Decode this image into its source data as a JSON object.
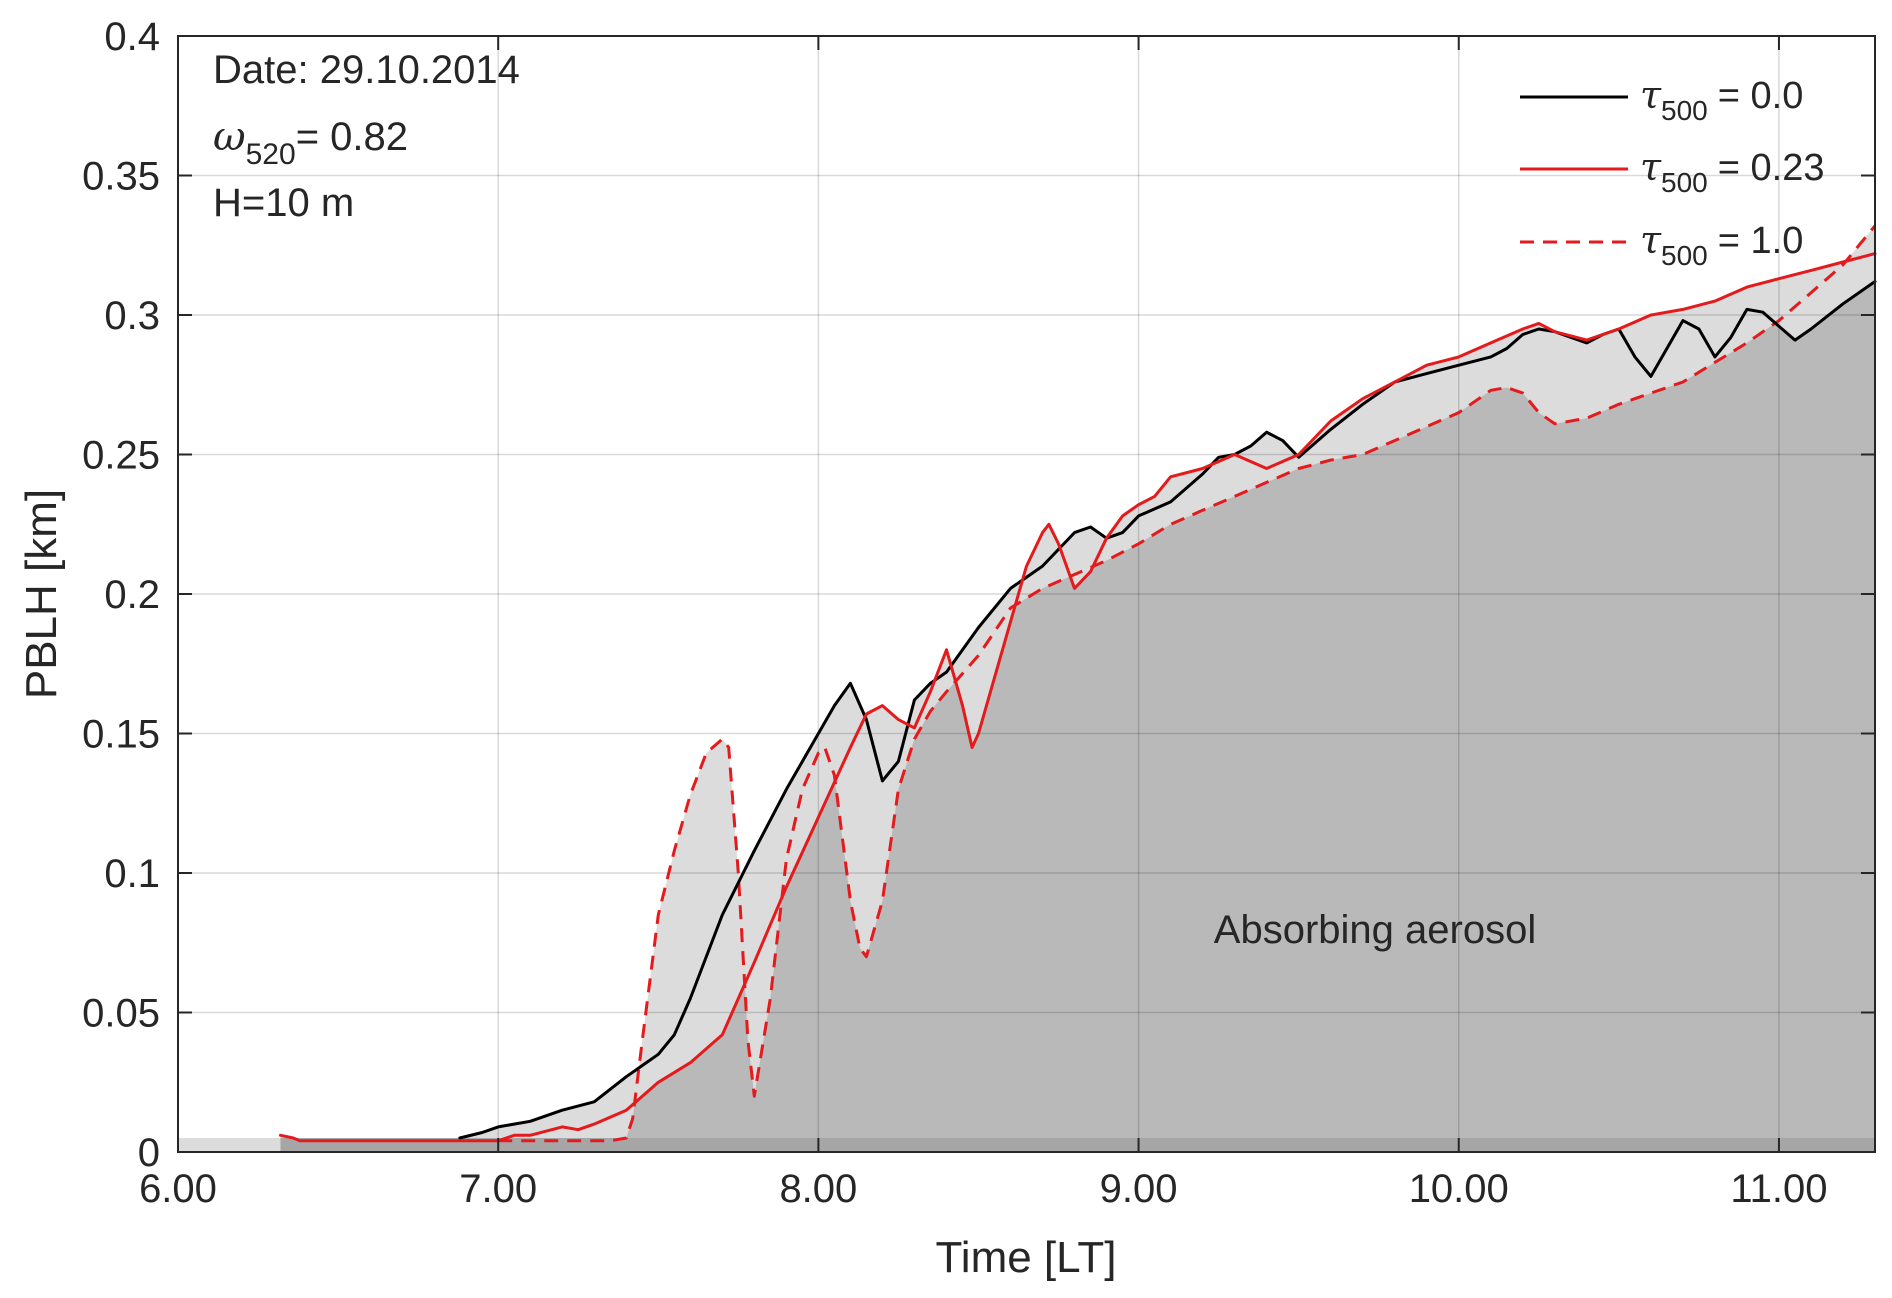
{
  "chart_data": {
    "type": "line",
    "title": "",
    "xlabel": "Time [LT]",
    "ylabel": "PBLH [km]",
    "xlim": [
      6.0,
      11.3
    ],
    "ylim": [
      0,
      0.4
    ],
    "xticks": [
      6.0,
      7.0,
      8.0,
      9.0,
      10.0,
      11.0
    ],
    "xtick_labels": [
      "6.00",
      "7.00",
      "8.00",
      "9.00",
      "10.00",
      "11.00"
    ],
    "yticks": [
      0,
      0.05,
      0.1,
      0.15,
      0.2,
      0.25,
      0.3,
      0.35,
      0.4
    ],
    "ytick_labels": [
      "0",
      "0.05",
      "0.1",
      "0.15",
      "0.2",
      "0.25",
      "0.3",
      "0.35",
      "0.4"
    ],
    "grid": true,
    "legend_position": "top-right",
    "annotations": {
      "date_label": "Date: 29.10.2014",
      "omega_symbol": "ω",
      "omega_subscript": "520",
      "omega_value": "= 0.82",
      "height_label": "H=10 m",
      "region_label": "Absorbing aerosol"
    },
    "fill": {
      "dark_color": "#b9b9b9",
      "light_color": "#dcdcdc",
      "baseline_color": "#a6a6a6"
    },
    "series": [
      {
        "name_symbol": "τ",
        "name_subscript": "500",
        "name_value": "= 0.0",
        "color": "#000000",
        "style": "solid",
        "x": [
          6.88,
          6.95,
          7.0,
          7.1,
          7.2,
          7.3,
          7.4,
          7.5,
          7.55,
          7.6,
          7.7,
          7.8,
          7.9,
          8.0,
          8.05,
          8.1,
          8.15,
          8.2,
          8.25,
          8.3,
          8.35,
          8.4,
          8.5,
          8.6,
          8.7,
          8.8,
          8.85,
          8.9,
          8.95,
          9.0,
          9.1,
          9.2,
          9.25,
          9.3,
          9.35,
          9.4,
          9.45,
          9.5,
          9.6,
          9.7,
          9.8,
          9.9,
          10.0,
          10.1,
          10.15,
          10.2,
          10.25,
          10.3,
          10.35,
          10.4,
          10.45,
          10.5,
          10.55,
          10.6,
          10.65,
          10.7,
          10.75,
          10.8,
          10.85,
          10.9,
          10.95,
          11.0,
          11.05,
          11.1,
          11.2,
          11.3
        ],
        "y": [
          0.005,
          0.007,
          0.009,
          0.011,
          0.015,
          0.018,
          0.027,
          0.035,
          0.042,
          0.055,
          0.085,
          0.108,
          0.13,
          0.15,
          0.16,
          0.168,
          0.155,
          0.133,
          0.14,
          0.162,
          0.168,
          0.172,
          0.188,
          0.202,
          0.21,
          0.222,
          0.224,
          0.22,
          0.222,
          0.228,
          0.233,
          0.243,
          0.249,
          0.25,
          0.253,
          0.258,
          0.255,
          0.249,
          0.259,
          0.268,
          0.276,
          0.279,
          0.282,
          0.285,
          0.288,
          0.293,
          0.295,
          0.294,
          0.292,
          0.29,
          0.293,
          0.295,
          0.285,
          0.278,
          0.288,
          0.298,
          0.295,
          0.285,
          0.292,
          0.302,
          0.301,
          0.296,
          0.291,
          0.295,
          0.304,
          0.312
        ]
      },
      {
        "name_symbol": "τ",
        "name_subscript": "500",
        "name_value": "= 0.23",
        "color": "#e41a1c",
        "style": "solid",
        "x": [
          6.32,
          6.36,
          6.38,
          6.5,
          6.8,
          7.0,
          7.05,
          7.1,
          7.2,
          7.25,
          7.3,
          7.4,
          7.5,
          7.6,
          7.7,
          7.8,
          7.9,
          8.0,
          8.1,
          8.15,
          8.2,
          8.25,
          8.3,
          8.35,
          8.4,
          8.45,
          8.48,
          8.5,
          8.55,
          8.6,
          8.65,
          8.7,
          8.72,
          8.75,
          8.8,
          8.85,
          8.9,
          8.95,
          9.0,
          9.05,
          9.1,
          9.2,
          9.3,
          9.4,
          9.5,
          9.6,
          9.7,
          9.8,
          9.9,
          10.0,
          10.1,
          10.2,
          10.25,
          10.3,
          10.4,
          10.5,
          10.6,
          10.7,
          10.8,
          10.9,
          11.0,
          11.1,
          11.2,
          11.3
        ],
        "y": [
          0.006,
          0.005,
          0.004,
          0.004,
          0.004,
          0.004,
          0.006,
          0.006,
          0.009,
          0.008,
          0.01,
          0.015,
          0.025,
          0.032,
          0.042,
          0.068,
          0.095,
          0.12,
          0.145,
          0.157,
          0.16,
          0.155,
          0.152,
          0.165,
          0.18,
          0.16,
          0.145,
          0.15,
          0.17,
          0.19,
          0.21,
          0.222,
          0.225,
          0.218,
          0.202,
          0.208,
          0.22,
          0.228,
          0.232,
          0.235,
          0.242,
          0.245,
          0.25,
          0.245,
          0.25,
          0.262,
          0.27,
          0.276,
          0.282,
          0.285,
          0.29,
          0.295,
          0.297,
          0.294,
          0.291,
          0.295,
          0.3,
          0.302,
          0.305,
          0.31,
          0.313,
          0.316,
          0.319,
          0.322
        ]
      },
      {
        "name_symbol": "τ",
        "name_subscript": "500",
        "name_value": "= 1.0",
        "color": "#e41a1c",
        "style": "dashed",
        "x": [
          7.0,
          7.2,
          7.35,
          7.4,
          7.42,
          7.45,
          7.5,
          7.55,
          7.6,
          7.65,
          7.7,
          7.72,
          7.75,
          7.78,
          7.8,
          7.85,
          7.9,
          7.95,
          8.0,
          8.02,
          8.05,
          8.1,
          8.13,
          8.15,
          8.2,
          8.25,
          8.3,
          8.35,
          8.4,
          8.5,
          8.6,
          8.7,
          8.8,
          8.9,
          9.0,
          9.1,
          9.2,
          9.3,
          9.4,
          9.5,
          9.6,
          9.7,
          9.8,
          9.9,
          10.0,
          10.1,
          10.15,
          10.2,
          10.25,
          10.3,
          10.4,
          10.5,
          10.6,
          10.7,
          10.8,
          10.9,
          11.0,
          11.1,
          11.2,
          11.3
        ],
        "y": [
          0.004,
          0.004,
          0.004,
          0.005,
          0.012,
          0.04,
          0.085,
          0.108,
          0.128,
          0.143,
          0.148,
          0.145,
          0.1,
          0.04,
          0.02,
          0.055,
          0.105,
          0.13,
          0.143,
          0.145,
          0.135,
          0.09,
          0.073,
          0.07,
          0.09,
          0.13,
          0.148,
          0.158,
          0.165,
          0.178,
          0.195,
          0.202,
          0.207,
          0.212,
          0.218,
          0.225,
          0.23,
          0.235,
          0.24,
          0.245,
          0.248,
          0.25,
          0.255,
          0.26,
          0.265,
          0.273,
          0.274,
          0.272,
          0.265,
          0.261,
          0.263,
          0.268,
          0.272,
          0.276,
          0.283,
          0.29,
          0.298,
          0.308,
          0.318,
          0.332
        ]
      }
    ]
  }
}
